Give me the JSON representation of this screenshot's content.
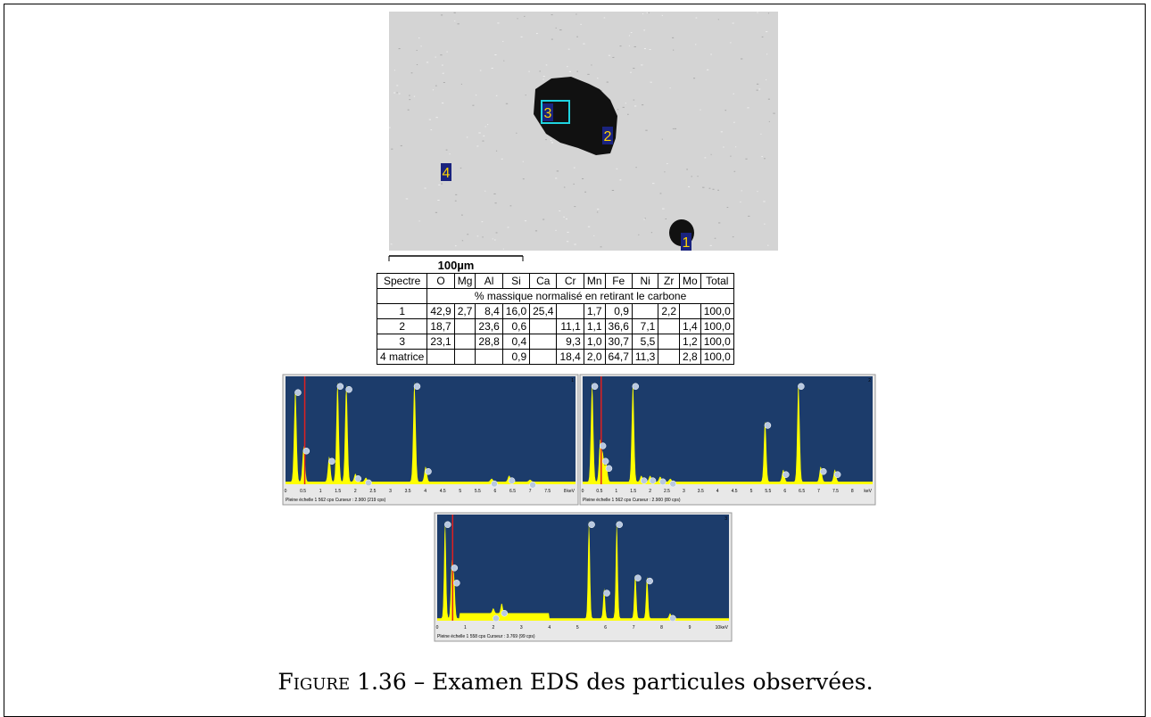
{
  "sem": {
    "labels": [
      "1",
      "2",
      "3",
      "4"
    ],
    "scale_bar": "100µm"
  },
  "table": {
    "header": [
      "Spectre",
      "O",
      "Mg",
      "Al",
      "Si",
      "Ca",
      "Cr",
      "Mn",
      "Fe",
      "Ni",
      "Zr",
      "Mo",
      "Total"
    ],
    "subheader": "% massique normalisé en retirant le carbone",
    "rows": [
      [
        "1",
        "42,9",
        "2,7",
        "8,4",
        "16,0",
        "25,4",
        null,
        "1,7",
        "0,9",
        null,
        "2,2",
        null,
        "100,0"
      ],
      [
        "2",
        "18,7",
        null,
        "23,6",
        "0,6",
        null,
        "11,1",
        "1,1",
        "36,6",
        "7,1",
        null,
        "1,4",
        "100,0"
      ],
      [
        "3",
        "23,1",
        null,
        "28,8",
        "0,4",
        null,
        "9,3",
        "1,0",
        "30,7",
        "5,5",
        null,
        "1,2",
        "100,0"
      ],
      [
        "4 matrice",
        null,
        null,
        null,
        "0,9",
        null,
        "18,4",
        "2,0",
        "64,7",
        "11,3",
        null,
        "2,8",
        "100,0"
      ]
    ]
  },
  "spectra": [
    {
      "number": "1",
      "ticks": [
        "0",
        "0.5",
        "1",
        "1.5",
        "2",
        "2.5",
        "3",
        "3.5",
        "4",
        "4.5",
        "5",
        "5.5",
        "6",
        "6.5",
        "7",
        "7.5",
        "8"
      ],
      "unit": "keV",
      "footer": "Pleine échelle 1 562 cps  Curseur : 2.900  (219 cps)"
    },
    {
      "number": "2",
      "ticks": [
        "0",
        "0.5",
        "1",
        "1.5",
        "2",
        "2.5",
        "3",
        "3.5",
        "4",
        "4.5",
        "5",
        "5.5",
        "6",
        "6.5",
        "7",
        "7.5",
        "8"
      ],
      "unit": "keV",
      "footer": "Pleine échelle 1 562 cps  Curseur : 2.900  (80 cps)"
    },
    {
      "number": "3",
      "ticks": [
        "0",
        "1",
        "2",
        "3",
        "4",
        "5",
        "6",
        "7",
        "8",
        "9",
        "10"
      ],
      "unit": "keV",
      "footer": "Pleine échelle 1 558 cps  Curseur : 3.769  (99 cps)"
    }
  ],
  "caption": {
    "label": "Figure 1.36",
    "text": "– Examen EDS des particules observées."
  }
}
